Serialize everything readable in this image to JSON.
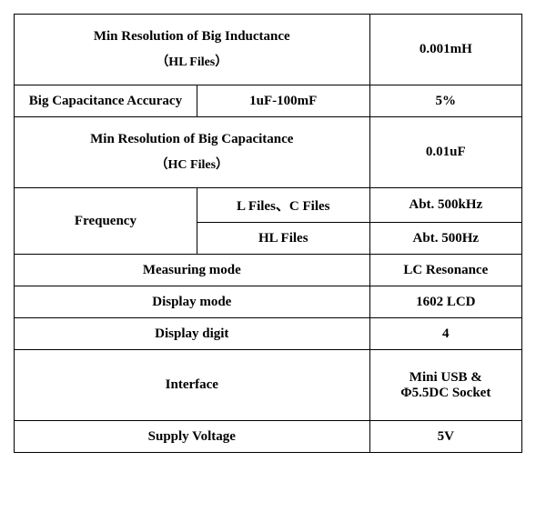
{
  "table": {
    "columns": [
      0.36,
      0.34,
      0.3
    ],
    "border_color": "#000000",
    "background_color": "#ffffff",
    "font_family": "Times New Roman",
    "font_weight": "bold",
    "font_size_main": 15,
    "font_size_sub": 14,
    "rows": [
      {
        "cells": [
          {
            "text": "Min Resolution of Big Inductance\n（HL Files）",
            "colspan": 2,
            "class": "tall"
          },
          {
            "text": "0.001mH",
            "colspan": 1,
            "class": "tall"
          }
        ]
      },
      {
        "cells": [
          {
            "text": "Big Capacitance Accuracy",
            "colspan": 1,
            "class": "short"
          },
          {
            "text": "1uF-100mF",
            "colspan": 1,
            "class": "short"
          },
          {
            "text": "5%",
            "colspan": 1,
            "class": "short"
          }
        ]
      },
      {
        "cells": [
          {
            "text": "Min Resolution of Big Capacitance\n（HC Files）",
            "colspan": 2,
            "class": "tall"
          },
          {
            "text": "0.01uF",
            "colspan": 1,
            "class": "tall"
          }
        ]
      },
      {
        "cells": [
          {
            "text": "Frequency",
            "colspan": 1,
            "rowspan": 2,
            "class": "med"
          },
          {
            "text": "L Files、C Files",
            "colspan": 1,
            "class": "short"
          },
          {
            "text": "Abt. 500kHz",
            "colspan": 1,
            "class": "short"
          }
        ]
      },
      {
        "cells": [
          {
            "text": "HL Files",
            "colspan": 1,
            "class": "short"
          },
          {
            "text": "Abt. 500Hz",
            "colspan": 1,
            "class": "short"
          }
        ]
      },
      {
        "cells": [
          {
            "text": "Measuring mode",
            "colspan": 2,
            "class": "short"
          },
          {
            "text": "LC Resonance",
            "colspan": 1,
            "class": "short"
          }
        ]
      },
      {
        "cells": [
          {
            "text": "Display mode",
            "colspan": 2,
            "class": "short"
          },
          {
            "text": "1602 LCD",
            "colspan": 1,
            "class": "short"
          }
        ]
      },
      {
        "cells": [
          {
            "text": "Display digit",
            "colspan": 2,
            "class": "short"
          },
          {
            "text": "4",
            "colspan": 1,
            "class": "short"
          }
        ]
      },
      {
        "cells": [
          {
            "text": "Interface",
            "colspan": 2,
            "class": "tall"
          },
          {
            "text": "Mini USB &\nΦ5.5DC Socket",
            "colspan": 1,
            "class": "tall"
          }
        ]
      },
      {
        "cells": [
          {
            "text": "Supply Voltage",
            "colspan": 2,
            "class": "short"
          },
          {
            "text": "5V",
            "colspan": 1,
            "class": "short"
          }
        ]
      }
    ]
  }
}
